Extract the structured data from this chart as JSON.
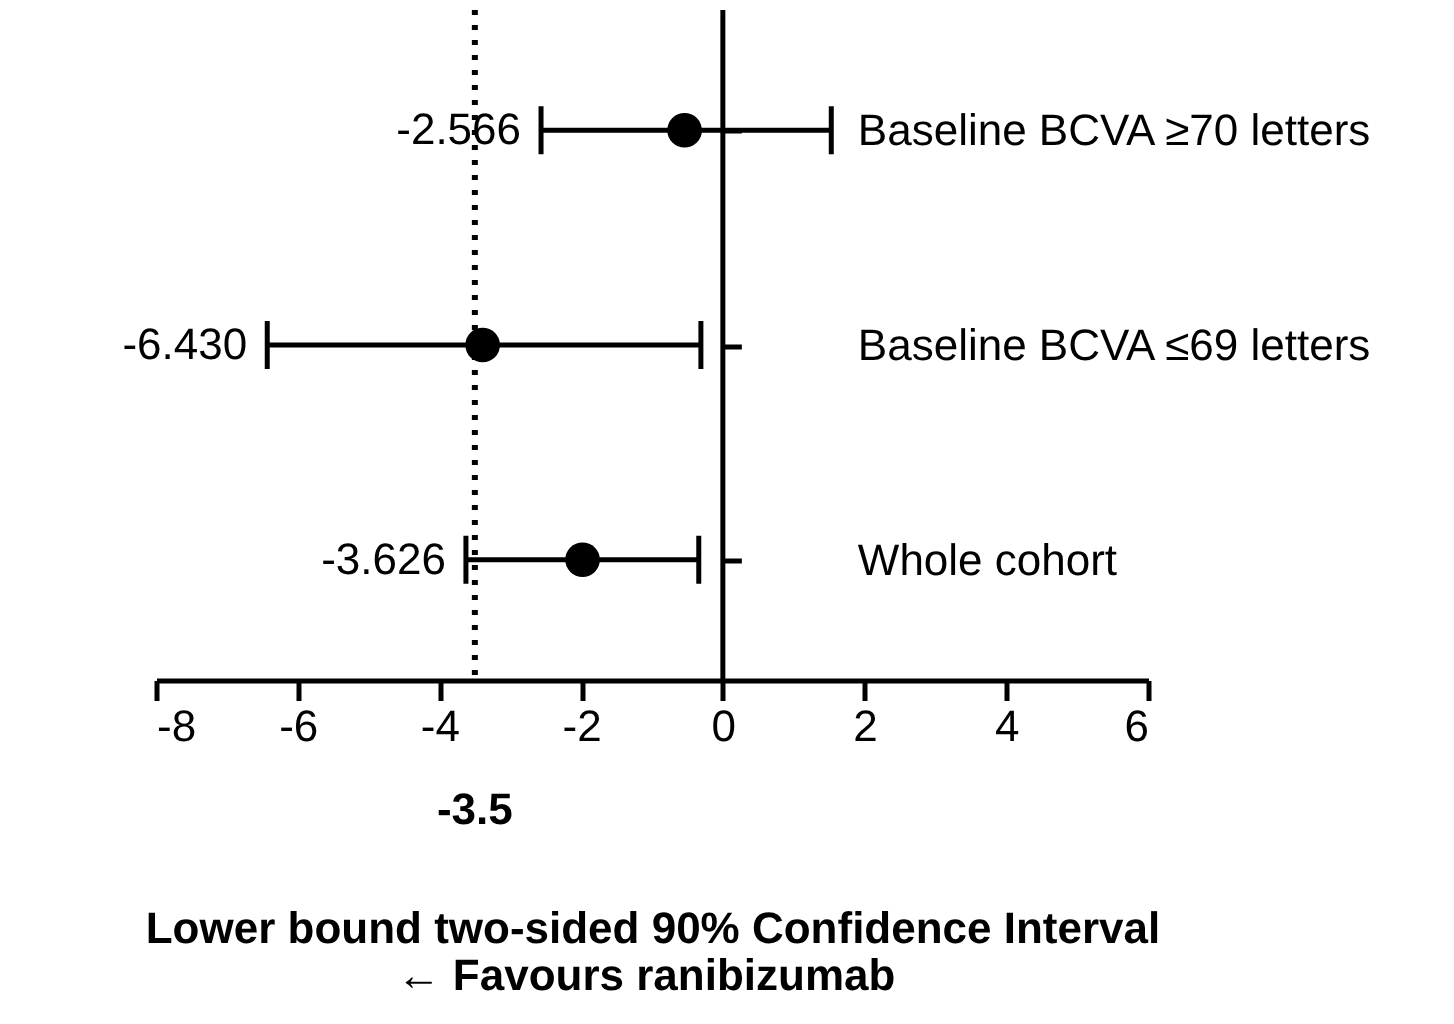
{
  "chart_data": {
    "type": "scatter",
    "orientation": "horizontal",
    "categories": [
      "Baseline BCVA ≥70 letters",
      "Baseline BCVA ≤69 letters",
      "Whole cohort"
    ],
    "values": [
      -0.54,
      -3.39,
      -1.98
    ],
    "errors": [
      [
        -2.566,
        1.53
      ],
      [
        -6.43,
        -0.31
      ],
      [
        -3.626,
        -0.34
      ]
    ],
    "color": "#000000",
    "marker": "circle",
    "xlim": [
      -8,
      6
    ],
    "xticks": [
      -8,
      -6,
      -4,
      -2,
      0,
      2,
      4,
      6
    ],
    "xlabel": "Lower bound two-sided 90% Confidence Interval",
    "ref_lines": [
      {
        "axis": "x",
        "value": -3.5,
        "label": "-3.5",
        "line_style": "dotted",
        "color": "#000000"
      },
      {
        "axis": "x",
        "value": 0,
        "line_style": "solid",
        "color": "#000000"
      }
    ],
    "annotations": [
      "-2.566",
      "-6.430",
      "-3.626",
      "← Favours ranibizumab"
    ],
    "grid": false
  }
}
